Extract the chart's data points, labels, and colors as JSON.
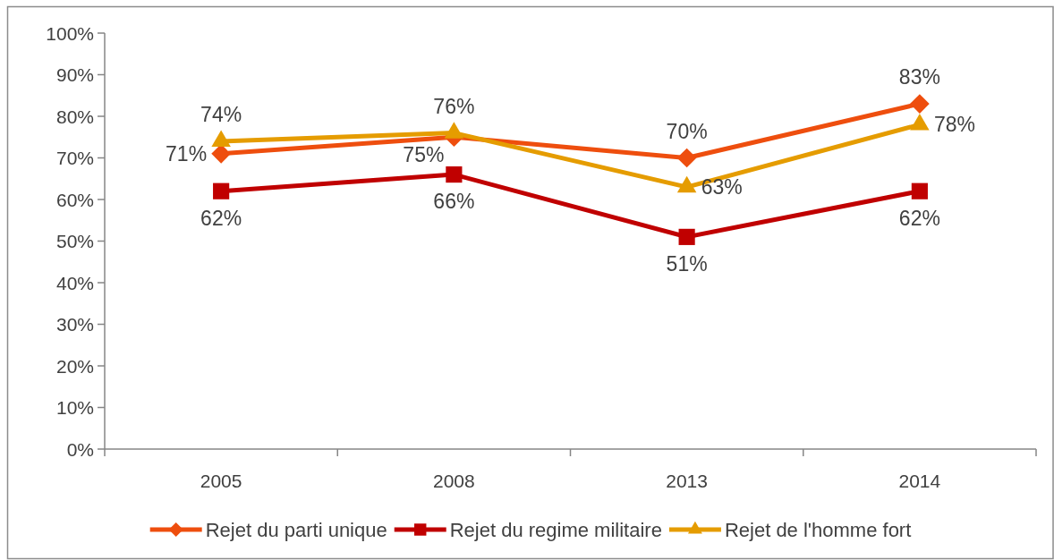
{
  "chart_data": {
    "type": "line",
    "categories": [
      "2005",
      "2008",
      "2013",
      "2014"
    ],
    "series": [
      {
        "name": "Rejet du parti unique",
        "color": "#ee4e0e",
        "marker": "diamond",
        "values": [
          71,
          75,
          70,
          83
        ],
        "value_labels": [
          "71%",
          "75%",
          "70%",
          "83%"
        ]
      },
      {
        "name": "Rejet du regime militaire",
        "color": "#c00000",
        "marker": "square",
        "values": [
          62,
          66,
          51,
          62
        ],
        "value_labels": [
          "62%",
          "66%",
          "51%",
          "62%"
        ]
      },
      {
        "name": "Rejet de l'homme fort",
        "color": "#e59c00",
        "marker": "triangle",
        "values": [
          74,
          76,
          63,
          78
        ],
        "value_labels": [
          "74%",
          "76%",
          "63%",
          "78%"
        ]
      }
    ],
    "ylim": [
      0,
      100
    ],
    "yticks": [
      {
        "value": 0,
        "label": "0%"
      },
      {
        "value": 10,
        "label": "10%"
      },
      {
        "value": 20,
        "label": "20%"
      },
      {
        "value": 30,
        "label": "30%"
      },
      {
        "value": 40,
        "label": "40%"
      },
      {
        "value": 50,
        "label": "50%"
      },
      {
        "value": 60,
        "label": "60%"
      },
      {
        "value": 70,
        "label": "70%"
      },
      {
        "value": 80,
        "label": "80%"
      },
      {
        "value": 90,
        "label": "90%"
      },
      {
        "value": 100,
        "label": "100%"
      }
    ],
    "legend": "bottom"
  }
}
